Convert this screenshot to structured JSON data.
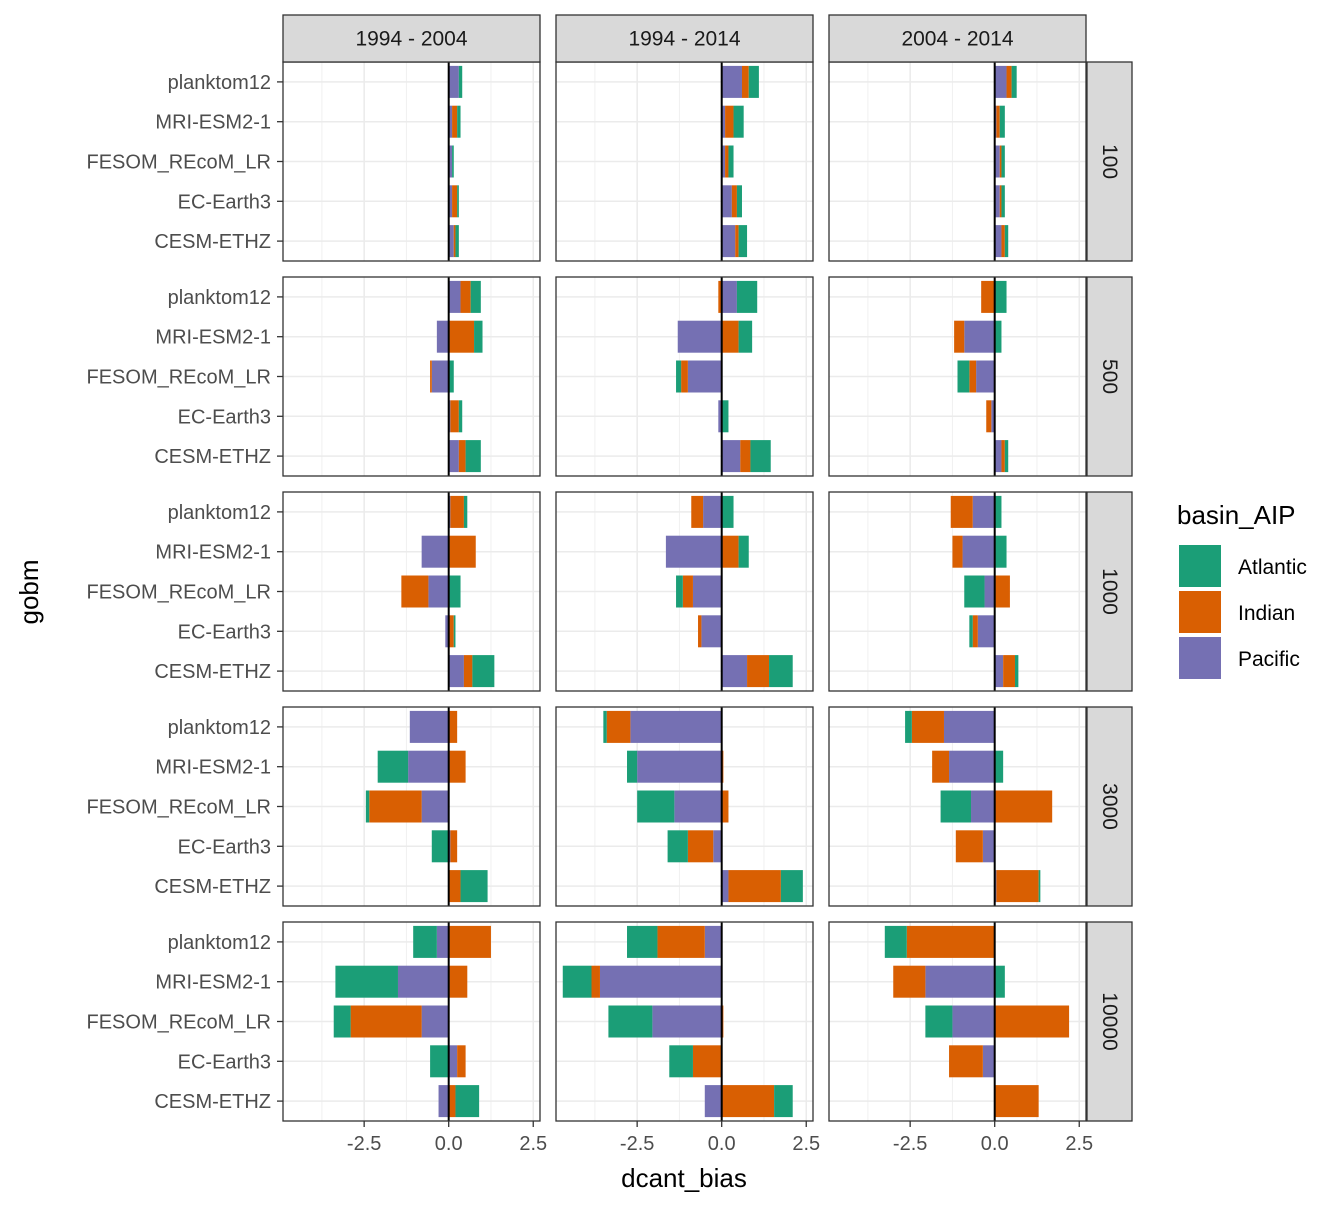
{
  "chart_data": {
    "type": "bar",
    "orientation": "horizontal",
    "stacked": true,
    "diverging": true,
    "xlabel": "dcant_bias",
    "ylabel": "gobm",
    "xlim": [
      -4.9,
      2.7
    ],
    "xticks": [
      -2.5,
      0.0,
      2.5
    ],
    "xtick_labels": [
      "-2.5",
      "0.0",
      "2.5"
    ],
    "grid": true,
    "legend": {
      "title": "basin_AIP",
      "position": "right"
    },
    "series_names": [
      "Atlantic",
      "Indian",
      "Pacific"
    ],
    "colors": {
      "Atlantic": "#1B9E77",
      "Indian": "#D95F02",
      "Pacific": "#7570B3"
    },
    "facet_cols": [
      "1994 - 2004",
      "1994 - 2014",
      "2004 - 2014"
    ],
    "facet_rows": [
      "100",
      "500",
      "1000",
      "3000",
      "10000"
    ],
    "categories": [
      "planktom12",
      "MRI-ESM2-1",
      "FESOM_REcoM_LR",
      "EC-Earth3",
      "CESM-ETHZ"
    ],
    "panels": [
      {
        "row": "100",
        "col": "1994 - 2004",
        "values": {
          "planktom12": [
            0.1,
            0.0,
            0.3
          ],
          "MRI-ESM2-1": [
            0.1,
            0.15,
            0.1
          ],
          "FESOM_REcoM_LR": [
            0.05,
            0.0,
            0.1
          ],
          "EC-Earth3": [
            0.05,
            0.15,
            0.1
          ],
          "CESM-ETHZ": [
            0.1,
            0.05,
            0.15
          ]
        }
      },
      {
        "row": "100",
        "col": "1994 - 2014",
        "values": {
          "planktom12": [
            0.3,
            0.2,
            0.6
          ],
          "MRI-ESM2-1": [
            0.3,
            0.25,
            0.1
          ],
          "FESOM_REcoM_LR": [
            0.15,
            0.1,
            0.1
          ],
          "EC-Earth3": [
            0.15,
            0.15,
            0.3
          ],
          "CESM-ETHZ": [
            0.25,
            0.1,
            0.4
          ]
        }
      },
      {
        "row": "100",
        "col": "2004 - 2014",
        "values": {
          "planktom12": [
            0.15,
            0.15,
            0.35
          ],
          "MRI-ESM2-1": [
            0.15,
            0.1,
            0.05
          ],
          "FESOM_REcoM_LR": [
            0.1,
            0.05,
            0.15
          ],
          "EC-Earth3": [
            0.1,
            0.05,
            0.15
          ],
          "CESM-ETHZ": [
            0.1,
            0.1,
            0.2
          ]
        }
      },
      {
        "row": "500",
        "col": "1994 - 2004",
        "values": {
          "planktom12": [
            0.3,
            0.3,
            0.35
          ],
          "MRI-ESM2-1": [
            0.25,
            0.75,
            -0.35
          ],
          "FESOM_REcoM_LR": [
            0.15,
            -0.05,
            -0.5
          ],
          "EC-Earth3": [
            0.1,
            0.25,
            0.05
          ],
          "CESM-ETHZ": [
            0.45,
            0.2,
            0.3
          ]
        }
      },
      {
        "row": "500",
        "col": "1994 - 2014",
        "values": {
          "planktom12": [
            0.6,
            -0.1,
            0.45
          ],
          "MRI-ESM2-1": [
            0.4,
            0.5,
            -1.3
          ],
          "FESOM_REcoM_LR": [
            -0.15,
            -0.2,
            -1.0
          ],
          "EC-Earth3": [
            0.2,
            0.0,
            -0.1
          ],
          "CESM-ETHZ": [
            0.6,
            0.3,
            0.55
          ]
        }
      },
      {
        "row": "500",
        "col": "2004 - 2014",
        "values": {
          "planktom12": [
            0.35,
            -0.4,
            0.0
          ],
          "MRI-ESM2-1": [
            0.2,
            -0.3,
            -0.9
          ],
          "FESOM_REcoM_LR": [
            -0.35,
            -0.2,
            -0.55
          ],
          "EC-Earth3": [
            0.0,
            -0.15,
            -0.1
          ],
          "CESM-ETHZ": [
            0.1,
            0.1,
            0.2
          ]
        }
      },
      {
        "row": "1000",
        "col": "1994 - 2004",
        "values": {
          "planktom12": [
            0.1,
            0.4,
            0.05
          ],
          "MRI-ESM2-1": [
            0.0,
            0.8,
            -0.8
          ],
          "FESOM_REcoM_LR": [
            0.35,
            -0.8,
            -0.6
          ],
          "EC-Earth3": [
            0.05,
            0.15,
            -0.1
          ],
          "CESM-ETHZ": [
            0.65,
            0.25,
            0.45
          ]
        }
      },
      {
        "row": "1000",
        "col": "1994 - 2014",
        "values": {
          "planktom12": [
            0.35,
            -0.35,
            -0.55
          ],
          "MRI-ESM2-1": [
            0.3,
            0.5,
            -1.65
          ],
          "FESOM_REcoM_LR": [
            -0.2,
            -0.3,
            -0.85
          ],
          "EC-Earth3": [
            0.0,
            -0.1,
            -0.6
          ],
          "CESM-ETHZ": [
            0.7,
            0.65,
            0.75
          ]
        }
      },
      {
        "row": "1000",
        "col": "2004 - 2014",
        "values": {
          "planktom12": [
            0.2,
            -0.65,
            -0.65
          ],
          "MRI-ESM2-1": [
            0.35,
            -0.3,
            -0.95
          ],
          "FESOM_REcoM_LR": [
            -0.6,
            0.45,
            -0.3
          ],
          "EC-Earth3": [
            -0.1,
            -0.15,
            -0.5
          ],
          "CESM-ETHZ": [
            0.1,
            0.35,
            0.25
          ]
        }
      },
      {
        "row": "3000",
        "col": "1994 - 2004",
        "values": {
          "planktom12": [
            0.0,
            0.25,
            -1.15
          ],
          "MRI-ESM2-1": [
            -0.9,
            0.5,
            -1.2
          ],
          "FESOM_REcoM_LR": [
            -0.1,
            -1.55,
            -0.8
          ],
          "EC-Earth3": [
            -0.5,
            0.2,
            0.05
          ],
          "CESM-ETHZ": [
            0.8,
            0.35,
            0.0
          ]
        }
      },
      {
        "row": "3000",
        "col": "1994 - 2014",
        "values": {
          "planktom12": [
            -0.1,
            -0.7,
            -2.7
          ],
          "MRI-ESM2-1": [
            -0.3,
            0.05,
            -2.5
          ],
          "FESOM_REcoM_LR": [
            -1.1,
            0.2,
            -1.4
          ],
          "EC-Earth3": [
            -0.6,
            -0.75,
            -0.25
          ],
          "CESM-ETHZ": [
            0.65,
            1.55,
            0.2
          ]
        }
      },
      {
        "row": "3000",
        "col": "2004 - 2014",
        "values": {
          "planktom12": [
            -0.2,
            -0.95,
            -1.5
          ],
          "MRI-ESM2-1": [
            0.25,
            -0.5,
            -1.35
          ],
          "FESOM_REcoM_LR": [
            -0.9,
            1.7,
            -0.7
          ],
          "EC-Earth3": [
            0.0,
            -0.8,
            -0.35
          ],
          "CESM-ETHZ": [
            0.05,
            1.25,
            0.05
          ]
        }
      },
      {
        "row": "10000",
        "col": "1994 - 2004",
        "values": {
          "planktom12": [
            -0.7,
            1.25,
            -0.35
          ],
          "MRI-ESM2-1": [
            -1.85,
            0.55,
            -1.5
          ],
          "FESOM_REcoM_LR": [
            -0.5,
            -2.1,
            -0.8
          ],
          "EC-Earth3": [
            -0.55,
            0.25,
            0.25
          ],
          "CESM-ETHZ": [
            0.7,
            0.2,
            -0.3
          ]
        }
      },
      {
        "row": "10000",
        "col": "1994 - 2014",
        "values": {
          "planktom12": [
            -0.9,
            -1.4,
            -0.5
          ],
          "MRI-ESM2-1": [
            -0.85,
            -0.25,
            -3.6
          ],
          "FESOM_REcoM_LR": [
            -1.3,
            0.05,
            -2.05
          ],
          "EC-Earth3": [
            -0.7,
            -0.85,
            0.0
          ],
          "CESM-ETHZ": [
            0.55,
            1.55,
            -0.5
          ]
        }
      },
      {
        "row": "10000",
        "col": "2004 - 2014",
        "values": {
          "planktom12": [
            -0.65,
            -2.6,
            0.0
          ],
          "MRI-ESM2-1": [
            0.3,
            -0.95,
            -2.05
          ],
          "FESOM_REcoM_LR": [
            -0.8,
            2.2,
            -1.25
          ],
          "EC-Earth3": [
            0.0,
            -1.0,
            -0.35
          ],
          "CESM-ETHZ": [
            0.0,
            1.3,
            0.0
          ]
        }
      }
    ]
  }
}
